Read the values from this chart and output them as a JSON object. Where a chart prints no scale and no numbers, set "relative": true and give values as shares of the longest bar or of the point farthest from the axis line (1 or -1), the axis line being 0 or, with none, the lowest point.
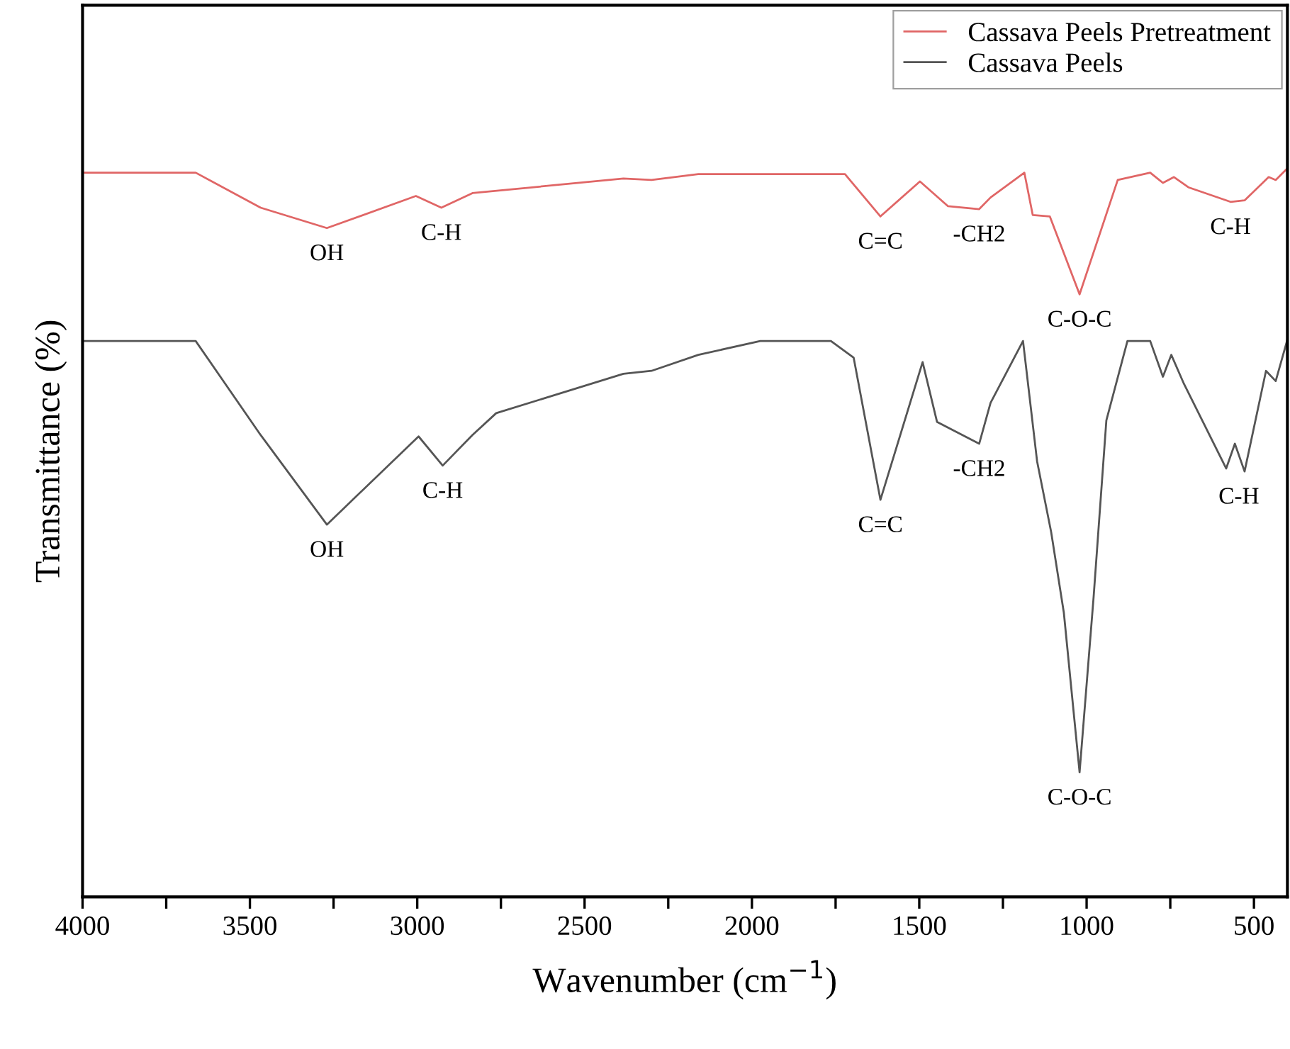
{
  "chart_data": {
    "type": "line",
    "relative": true,
    "xlabel": "Wavenumber (cm$^{−1}$)",
    "ylabel": "Transmittance (%)",
    "xlim": [
      4000,
      400
    ],
    "xticks": [
      4000,
      {
        "value": 3750,
        "label": null
      },
      3500,
      {
        "value": 3250,
        "label": null
      },
      3000,
      {
        "value": 2750,
        "label": null
      },
      2500,
      {
        "value": 2250,
        "label": null
      },
      2000,
      {
        "value": 1750,
        "label": null
      },
      1500,
      {
        "value": 1250,
        "label": null
      },
      1000,
      {
        "value": 750,
        "label": null
      },
      500
    ],
    "legend": "top right",
    "grid": false,
    "marker": "none",
    "line_style": "solid",
    "series": [
      {
        "name": "Cassava Peels Pretreatment",
        "color": "#e06666",
        "x": [
          4000,
          3662,
          3468,
          3270,
          3004,
          2928,
          2835,
          2384,
          2300,
          2160,
          1722,
          1616,
          1498,
          1414,
          1321,
          1287,
          1186,
          1161,
          1110,
          1021,
          907,
          810,
          772,
          739,
          696,
          570,
          528,
          456,
          435,
          400
        ],
        "values": [
          0.994,
          0.994,
          0.946,
          0.918,
          0.962,
          0.946,
          0.966,
          0.986,
          0.984,
          0.992,
          0.992,
          0.934,
          0.982,
          0.948,
          0.944,
          0.96,
          0.994,
          0.936,
          0.934,
          0.827,
          0.984,
          0.994,
          0.98,
          0.988,
          0.974,
          0.954,
          0.956,
          0.988,
          0.984,
          1.0
        ]
      },
      {
        "name": "Cassava Peels",
        "color": "#555555",
        "x": [
          4000,
          3662,
          3468,
          3270,
          2996,
          2924,
          2835,
          2764,
          2384,
          2300,
          2160,
          1975,
          1764,
          1696,
          1616,
          1490,
          1447,
          1321,
          1287,
          1190,
          1148,
          1106,
          1068,
          1021,
          979,
          941,
          878,
          810,
          772,
          747,
          709,
          583,
          557,
          528,
          464,
          435,
          400
        ],
        "values": [
          0.763,
          0.763,
          0.634,
          0.511,
          0.632,
          0.592,
          0.634,
          0.664,
          0.718,
          0.722,
          0.744,
          0.763,
          0.763,
          0.74,
          0.545,
          0.734,
          0.652,
          0.622,
          0.678,
          0.763,
          0.598,
          0.501,
          0.39,
          0.171,
          0.412,
          0.654,
          0.763,
          0.763,
          0.714,
          0.744,
          0.704,
          0.588,
          0.622,
          0.584,
          0.722,
          0.708,
          0.765
        ]
      }
    ],
    "annotations": [
      {
        "text": "OH",
        "x": 3270,
        "y": 0.918
      },
      {
        "text": "C-H",
        "x": 2928,
        "y": 0.946
      },
      {
        "text": "C=C",
        "x": 1616,
        "y": 0.934
      },
      {
        "text": "-CH2",
        "x": 1321,
        "y": 0.944
      },
      {
        "text": "C-O-C",
        "x": 1021,
        "y": 0.827
      },
      {
        "text": "C-H",
        "x": 570,
        "y": 0.954
      },
      {
        "text": "OH",
        "x": 3270,
        "y": 0.511
      },
      {
        "text": "C-H",
        "x": 2924,
        "y": 0.592
      },
      {
        "text": "C=C",
        "x": 1616,
        "y": 0.545
      },
      {
        "text": "-CH2",
        "x": 1321,
        "y": 0.622
      },
      {
        "text": "C-O-C",
        "x": 1021,
        "y": 0.171
      },
      {
        "text": "C-H",
        "x": 545,
        "y": 0.584
      }
    ]
  }
}
